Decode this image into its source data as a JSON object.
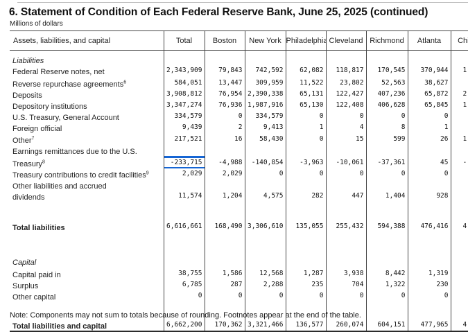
{
  "page": {
    "title": "6. Statement of Condition of Each Federal Reserve Bank, June 25, 2025 (continued)",
    "subtitle": "Millions of dollars",
    "note": "Note: Components may not sum to totals because of rounding. Footnotes appear at the end of the table."
  },
  "annotations": {
    "highlight_color": "#1565d4",
    "highlighted_cell": {
      "row_label": "Treasury",
      "column": "Total",
      "value": "-233,715"
    }
  },
  "table": {
    "label_header": "Assets, liabilities, and capital",
    "columns": [
      "Total",
      "Boston",
      "New York",
      "Philadelphia",
      "Cleveland",
      "Richmond",
      "Atlanta",
      "Chicago"
    ],
    "last_column_clipped": true,
    "rows": [
      {
        "style": "section",
        "cls": "first",
        "label": "Liabilities"
      },
      {
        "style": "item",
        "indent": 1,
        "label": "Federal Reserve notes, net",
        "values": [
          "2,343,909",
          "79,843",
          "742,592",
          "62,082",
          "118,817",
          "170,545",
          "370,944"
        ],
        "frag": "1"
      },
      {
        "style": "item",
        "indent": 1,
        "cls": "gap1",
        "label": "Reverse repurchase agreements",
        "sup": "6",
        "values": [
          "584,051",
          "13,447",
          "309,959",
          "11,522",
          "23,802",
          "52,563",
          "38,627"
        ],
        "frag": ""
      },
      {
        "style": "item",
        "indent": 1,
        "label": "Deposits",
        "values": [
          "3,908,812",
          "76,954",
          "2,390,338",
          "65,131",
          "122,427",
          "407,236",
          "65,872"
        ],
        "frag": "2"
      },
      {
        "style": "item",
        "indent": 2,
        "label": "Depository institutions",
        "values": [
          "3,347,274",
          "76,936",
          "1,987,916",
          "65,130",
          "122,408",
          "406,628",
          "65,845"
        ],
        "frag": "1"
      },
      {
        "style": "item",
        "indent": 2,
        "label": "U.S. Treasury, General Account",
        "values": [
          "334,579",
          "0",
          "334,579",
          "0",
          "0",
          "0",
          "0"
        ],
        "frag": ""
      },
      {
        "style": "item",
        "indent": 2,
        "label": "Foreign official",
        "values": [
          "9,439",
          "2",
          "9,413",
          "1",
          "4",
          "8",
          "1"
        ],
        "frag": ""
      },
      {
        "style": "item",
        "indent": 2,
        "cls": "gap0",
        "label": "Other",
        "sup": "7",
        "values": [
          "217,521",
          "16",
          "58,430",
          "0",
          "15",
          "599",
          "26"
        ],
        "frag": "1"
      },
      {
        "style": "item",
        "indent": 1,
        "label": "Earnings remittances due to the U.S.",
        "values": null,
        "frag": ""
      },
      {
        "style": "item",
        "indent": 3,
        "cls": "gap1",
        "label": "Treasury",
        "sup": "8",
        "values": [
          "-233,715",
          "-4,988",
          "-140,854",
          "-3,963",
          "-10,061",
          "-37,361",
          "45"
        ],
        "frag": "-",
        "highlight_col": 0
      },
      {
        "style": "item",
        "indent": 1,
        "label": "Treasury contributions to credit facilities",
        "sup": "9",
        "values": [
          "2,029",
          "2,029",
          "0",
          "0",
          "0",
          "0",
          "0"
        ],
        "frag": ""
      },
      {
        "style": "item",
        "indent": 1,
        "label": "Other liabilities and accrued",
        "values": null,
        "frag": ""
      },
      {
        "style": "item",
        "indent": 3,
        "label": "dividends",
        "values": [
          "11,574",
          "1,204",
          "4,575",
          "282",
          "447",
          "1,404",
          "928"
        ],
        "frag": ""
      },
      {
        "style": "spacer",
        "cls": "sp-lg"
      },
      {
        "style": "total",
        "label": "Total liabilities",
        "values": [
          "6,616,661",
          "168,490",
          "3,306,610",
          "135,055",
          "255,432",
          "594,388",
          "476,416"
        ],
        "frag": "4"
      },
      {
        "style": "spacer",
        "cls": "sp-xl"
      },
      {
        "style": "section",
        "label": "Capital"
      },
      {
        "style": "item",
        "indent": 1,
        "cls": "gap1",
        "label": "Capital paid in",
        "values": [
          "38,755",
          "1,586",
          "12,568",
          "1,287",
          "3,938",
          "8,442",
          "1,319"
        ],
        "frag": ""
      },
      {
        "style": "item",
        "indent": 1,
        "label": "Surplus",
        "values": [
          "6,785",
          "287",
          "2,288",
          "235",
          "704",
          "1,322",
          "230"
        ],
        "frag": ""
      },
      {
        "style": "item",
        "indent": 1,
        "label": "Other capital",
        "values": [
          "0",
          "0",
          "0",
          "0",
          "0",
          "0",
          "0"
        ],
        "frag": ""
      },
      {
        "style": "spacer",
        "cls": "sp-md"
      },
      {
        "style": "total",
        "label": "Total liabilities and capital",
        "values": [
          "6,662,200",
          "170,362",
          "3,321,466",
          "136,577",
          "260,074",
          "604,151",
          "477,965"
        ],
        "frag": "4"
      }
    ]
  }
}
